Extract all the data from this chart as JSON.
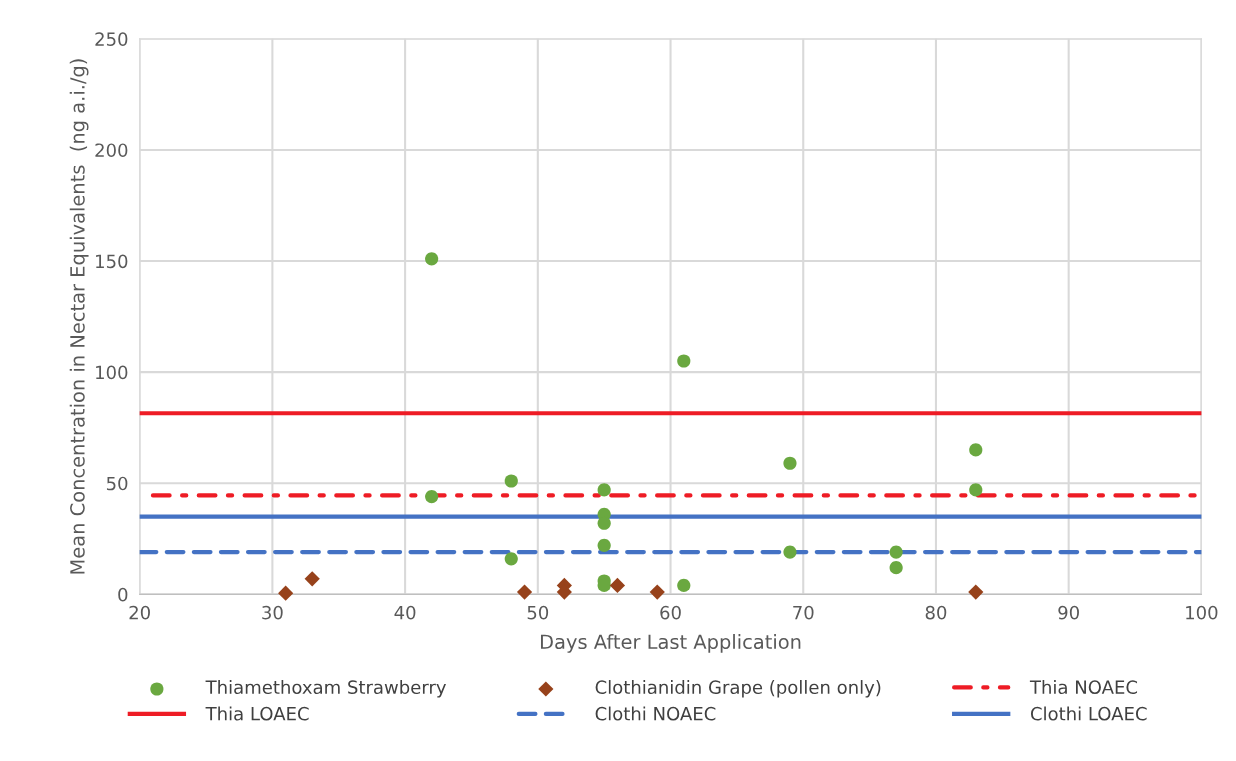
{
  "chart_data": {
    "type": "scatter",
    "xlabel": "Days After Last Application",
    "ylabel": "Mean Concentration in Nectar Equivalents  (ng a.i./g)",
    "xlim": [
      20,
      100
    ],
    "xticks": [
      20,
      30,
      40,
      50,
      60,
      70,
      80,
      90,
      100
    ],
    "ylim": [
      0,
      250
    ],
    "yticks": [
      0,
      50,
      100,
      150,
      200,
      250
    ],
    "grid": true,
    "legend": "bottom",
    "series": [
      {
        "name": "Thiamethoxam Strawberry",
        "marker": "circle",
        "color": "#6aa840",
        "x": [
          42,
          42,
          48,
          48,
          55,
          55,
          55,
          55,
          55,
          55,
          61,
          61,
          69,
          69,
          77,
          77,
          83,
          83
        ],
        "values": [
          151,
          44,
          51,
          16,
          47,
          36,
          32,
          22,
          6,
          4,
          105,
          4,
          59,
          19,
          19,
          12,
          65,
          47
        ]
      },
      {
        "name": "Clothianidin Grape (pollen only)",
        "marker": "diamond",
        "color": "#97421b",
        "x": [
          31,
          33,
          49,
          52,
          52,
          56,
          59,
          83
        ],
        "values": [
          0.5,
          7,
          1,
          4,
          1,
          4,
          1,
          1
        ]
      },
      {
        "name": "Thia NOAEC",
        "type": "line",
        "line_style": "dashdot",
        "color": "#ee1c25",
        "x": [
          21,
          100
        ],
        "values": [
          44.5,
          44.5
        ]
      },
      {
        "name": "Thia LOAEC",
        "type": "line",
        "line_style": "solid",
        "color": "#ee1c25",
        "x": [
          20,
          100
        ],
        "values": [
          81.5,
          81.5
        ]
      },
      {
        "name": "Clothi NOAEC",
        "type": "line",
        "line_style": "dashed",
        "color": "#4472c4",
        "x": [
          20,
          100
        ],
        "values": [
          19,
          19
        ]
      },
      {
        "name": "Clothi LOAEC",
        "type": "line",
        "line_style": "solid",
        "color": "#4472c4",
        "x": [
          20,
          100
        ],
        "values": [
          35,
          35
        ]
      }
    ]
  }
}
